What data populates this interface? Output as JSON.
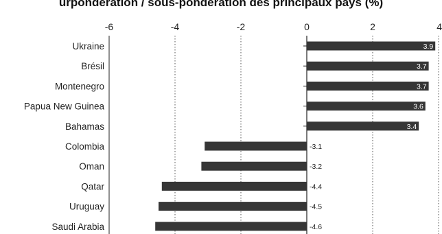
{
  "chart_data": {
    "type": "bar",
    "orientation": "horizontal",
    "title": "urpondération / sous-pondération des principaux pays (%)",
    "categories": [
      "Ukraine",
      "Brésil",
      "Montenegro",
      "Papua New Guinea",
      "Bahamas",
      "Colombia",
      "Oman",
      "Qatar",
      "Uruguay",
      "Saudi Arabia"
    ],
    "values": [
      3.9,
      3.7,
      3.7,
      3.6,
      3.4,
      -3.1,
      -3.2,
      -4.4,
      -4.5,
      -4.6
    ],
    "value_labels": [
      "3.9",
      "3.7",
      "3.7",
      "3.6",
      "3.4",
      "-3.1",
      "-3.2",
      "-4.4",
      "-4.5",
      "-4.6"
    ],
    "xlim": [
      -6,
      4
    ],
    "xticks": [
      "-6",
      "-4",
      "-2",
      "0",
      "2",
      "4"
    ],
    "xaxis_position": "top",
    "grid": "vertical dotted",
    "bar_color": "#363636",
    "label_color_inside": "#ffffff",
    "label_color_outside": "#222222"
  }
}
